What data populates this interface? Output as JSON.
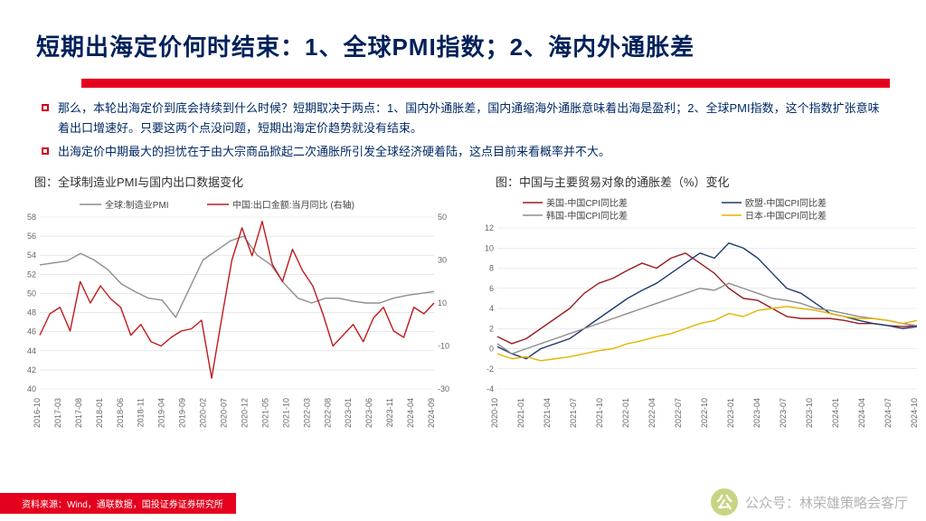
{
  "title": "短期出海定价何时结束：1、全球PMI指数；2、海内外通胀差",
  "bullets": [
    "那么，本轮出海定价到底会持续到什么时候？短期取决于两点：1、国内外通胀差，国内通缩海外通胀意味着出海是盈利；2、全球PMI指数，这个指数扩张意味着出口增速好。只要这两个点没问题，短期出海定价趋势就没有结束。",
    "出海定价中期最大的担忧在于由大宗商品掀起二次通胀所引发全球经济硬着陆，这点目前来看概率并不大。"
  ],
  "source": "资料来源：Wind，通联数据，国投证券证券研究所",
  "watermark": "公众号：林荣雄策略会客厅",
  "chart1": {
    "caption": "图：全球制造业PMI与国内出口数据变化",
    "legend": [
      {
        "label": "全球:制造业PMI",
        "color": "#8e8e8e",
        "dash": ""
      },
      {
        "label": "中国:出口金额:当月同比 (右轴)",
        "color": "#c1191c",
        "dash": ""
      }
    ],
    "xlabels": [
      "2016-10",
      "2017-03",
      "2017-08",
      "2018-01",
      "2018-06",
      "2018-11",
      "2019-04",
      "2019-09",
      "2020-02",
      "2020-07",
      "2020-12",
      "2021-05",
      "2021-10",
      "2022-03",
      "2022-08",
      "2023-01",
      "2023-06",
      "2023-11",
      "2024-04",
      "2024-09"
    ],
    "left_axis": {
      "min": 40,
      "max": 58,
      "step": 2
    },
    "right_axis": {
      "min": -30,
      "max": 50,
      "step": 20
    },
    "grid_color": "#d9d9d9",
    "background_color": "#ffffff",
    "title_fontsize": 13,
    "label_fontsize": 9,
    "series_pmi": [
      53,
      53.2,
      53.4,
      54.2,
      53.5,
      52.5,
      51,
      50.2,
      49.5,
      49.3,
      47.5,
      50.5,
      53.5,
      54.5,
      55.5,
      56,
      54,
      53,
      51,
      49.5,
      49,
      49.5,
      49.5,
      49.2,
      49,
      49,
      49.5,
      49.8,
      50,
      50.2
    ],
    "series_export": [
      -5,
      5,
      8,
      -3,
      20,
      10,
      18,
      12,
      8,
      -5,
      0,
      -8,
      -10,
      -6,
      -3,
      -2,
      2,
      -25,
      3,
      30,
      45,
      32,
      48,
      28,
      20,
      35,
      25,
      18,
      5,
      -10,
      -5,
      0,
      -8,
      3,
      8,
      -3,
      -6,
      8,
      5,
      10
    ]
  },
  "chart2": {
    "caption": "图：中国与主要贸易对象的通胀差（%）变化",
    "legend": [
      {
        "label": "美国-中国CPI同比差",
        "color": "#9a1d1f"
      },
      {
        "label": "欧盟-中国CPI同比差",
        "color": "#1e3a6e"
      },
      {
        "label": "韩国-中国CPI同比差",
        "color": "#8e8e8e"
      },
      {
        "label": "日本-中国CPI同比差",
        "color": "#e5b400"
      }
    ],
    "xlabels": [
      "2020-10",
      "2021-01",
      "2021-04",
      "2021-07",
      "2021-10",
      "2022-01",
      "2022-04",
      "2022-07",
      "2022-10",
      "2023-01",
      "2023-04",
      "2023-07",
      "2023-10",
      "2024-01",
      "2024-04",
      "2024-07",
      "2024-10"
    ],
    "y_axis": {
      "min": -4,
      "max": 12,
      "step": 2
    },
    "grid_color": "#d9d9d9",
    "background_color": "#ffffff",
    "series_us": [
      1.2,
      0.5,
      1,
      2,
      3,
      4,
      5.5,
      6.5,
      7,
      7.8,
      8.5,
      8,
      9,
      9.5,
      8.5,
      7.5,
      6,
      5,
      4.8,
      4,
      3.2,
      3,
      3,
      3,
      2.8,
      2.5,
      2.5,
      2.3,
      2.2,
      2.3
    ],
    "series_eu": [
      0.2,
      -0.5,
      -1,
      0,
      0.5,
      1,
      2,
      3,
      4,
      5,
      5.8,
      6.5,
      7.5,
      8.5,
      9.5,
      9,
      10.5,
      10,
      9,
      7.5,
      6,
      5.5,
      4.5,
      3.5,
      3.2,
      2.8,
      2.5,
      2.3,
      2,
      2.2
    ],
    "series_kr": [
      0.5,
      -0.5,
      0,
      0.5,
      1,
      1.5,
      2,
      2.5,
      3,
      3.5,
      4,
      4.5,
      5,
      5.5,
      6,
      5.8,
      6.5,
      6,
      5.5,
      5,
      4.8,
      4.5,
      4,
      3.8,
      3.5,
      3.2,
      3,
      2.8,
      2.5,
      2.3
    ],
    "series_jp": [
      -0.5,
      -1,
      -0.8,
      -1.2,
      -1,
      -0.8,
      -0.5,
      -0.2,
      0,
      0.5,
      0.8,
      1.2,
      1.5,
      2,
      2.5,
      2.8,
      3.5,
      3.2,
      3.8,
      4,
      4.2,
      4,
      3.8,
      3.5,
      3.2,
      3,
      3,
      2.8,
      2.5,
      2.8
    ]
  }
}
